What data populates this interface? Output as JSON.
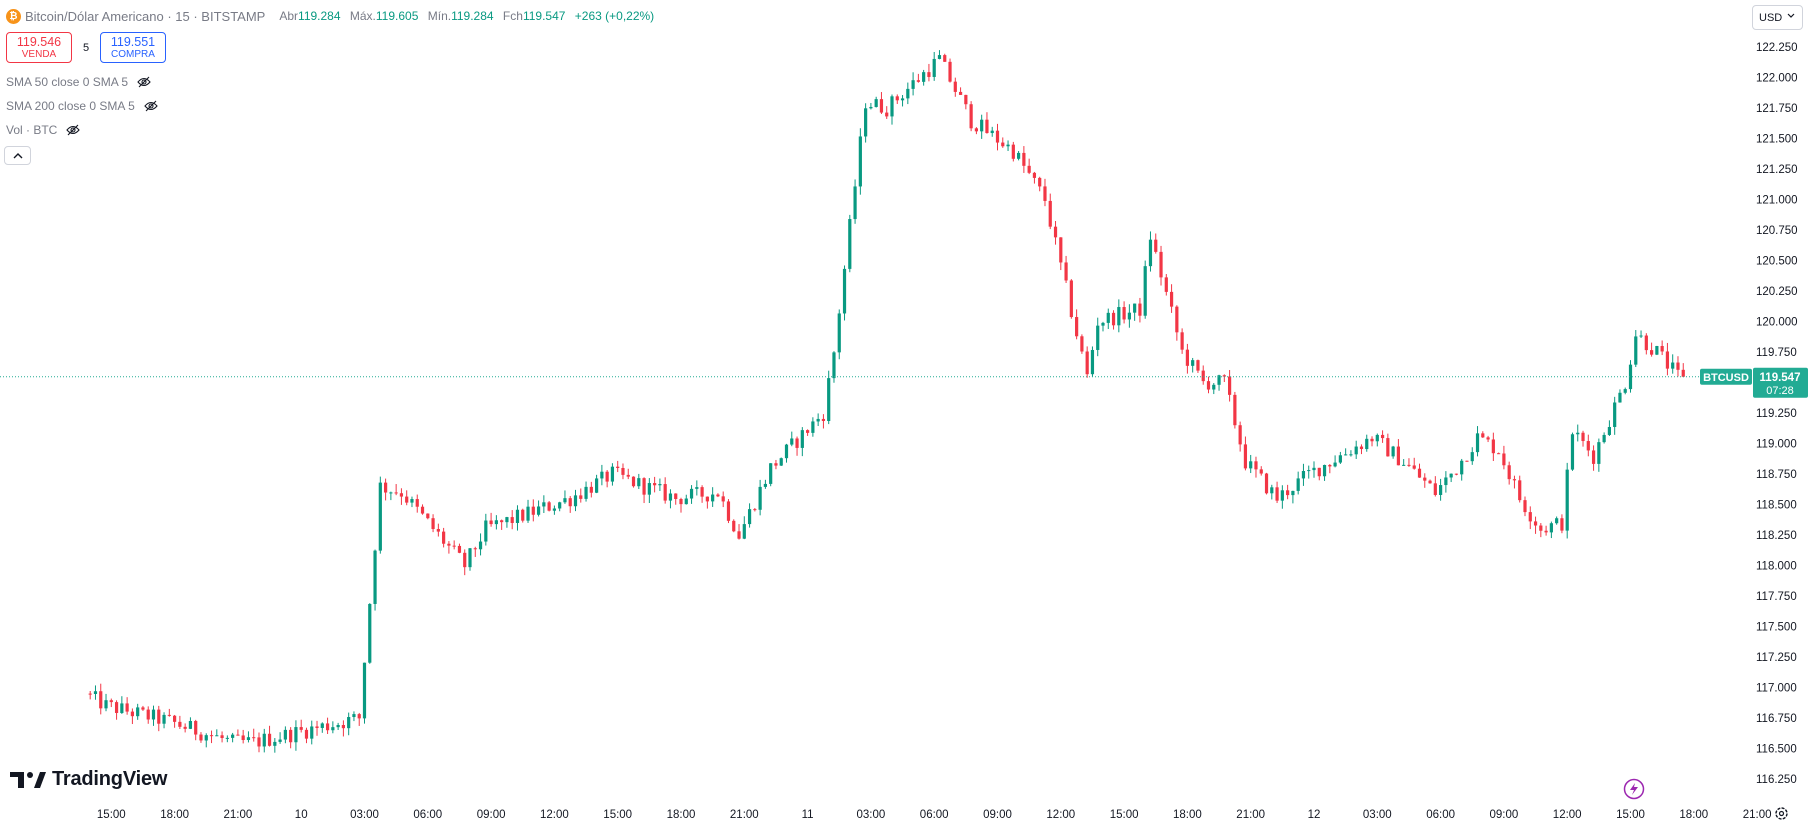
{
  "header": {
    "coin_icon": "bitcoin-icon",
    "symbol_title": "Bitcoin/Dólar Americano · 15 · BITSTAMP",
    "ohlc": {
      "open_label": "Abr",
      "open": "119.284",
      "high_label": "Máx.",
      "high": "119.605",
      "low_label": "Mín.",
      "low": "119.284",
      "close_label": "Fch",
      "close": "119.547",
      "change": "+263 (+0,22%)"
    }
  },
  "trade": {
    "sell_price": "119.546",
    "sell_label": "VENDA",
    "spread": "5",
    "buy_price": "119.551",
    "buy_label": "COMPRA"
  },
  "legends": [
    {
      "label": "SMA 50 close 0 SMA 5"
    },
    {
      "label": "SMA 200 close 0 SMA 5"
    },
    {
      "label": "Vol · BTC"
    }
  ],
  "currency_selector": "USD",
  "branding": "TradingView",
  "colors": {
    "up": "#089981",
    "down": "#f23645",
    "axis_text": "#131722",
    "last_price_bg": "#22ab94"
  },
  "chart_data": {
    "type": "candlestick",
    "price_axis_ticks": [
      "122.250",
      "122.000",
      "121.750",
      "121.500",
      "121.250",
      "121.000",
      "120.750",
      "120.500",
      "120.250",
      "120.000",
      "119.750",
      "119.250",
      "119.000",
      "118.750",
      "118.500",
      "118.250",
      "118.000",
      "117.750",
      "117.500",
      "117.250",
      "117.000",
      "116.750",
      "116.500",
      "116.250"
    ],
    "ylim": [
      116.15,
      122.3
    ],
    "time_axis_ticks": [
      "15:00",
      "18:00",
      "21:00",
      "10",
      "03:00",
      "06:00",
      "09:00",
      "12:00",
      "15:00",
      "18:00",
      "21:00",
      "11",
      "03:00",
      "06:00",
      "09:00",
      "12:00",
      "15:00",
      "18:00",
      "21:00",
      "12",
      "03:00",
      "06:00",
      "09:00",
      "12:00",
      "15:00",
      "18:00",
      "21:00"
    ],
    "last_price": {
      "symbol": "BTCUSD",
      "price": "119.547",
      "countdown": "07:28"
    },
    "keypoints": [
      {
        "t": "09 14:00",
        "p": 116.95
      },
      {
        "t": "09 15:00",
        "p": 116.85
      },
      {
        "t": "09 18:00",
        "p": 116.72
      },
      {
        "t": "09 21:00",
        "p": 116.55
      },
      {
        "t": "09 22:00",
        "p": 116.55
      },
      {
        "t": "10 03:00",
        "p": 116.75
      },
      {
        "t": "10 04:00",
        "p": 118.65
      },
      {
        "t": "10 05:00",
        "p": 118.6
      },
      {
        "t": "10 08:00",
        "p": 118.0
      },
      {
        "t": "10 09:00",
        "p": 118.3
      },
      {
        "t": "10 13:00",
        "p": 118.55
      },
      {
        "t": "10 15:00",
        "p": 118.75
      },
      {
        "t": "10 18:00",
        "p": 118.55
      },
      {
        "t": "10 20:00",
        "p": 118.6
      },
      {
        "t": "10 21:00",
        "p": 118.25
      },
      {
        "t": "10 22:30",
        "p": 118.8
      },
      {
        "t": "11 01:00",
        "p": 119.25
      },
      {
        "t": "11 01:30",
        "p": 119.75
      },
      {
        "t": "11 03:00",
        "p": 121.8
      },
      {
        "t": "11 04:00",
        "p": 121.75
      },
      {
        "t": "11 06:30",
        "p": 122.15
      },
      {
        "t": "11 08:00",
        "p": 121.65
      },
      {
        "t": "11 10:00",
        "p": 121.4
      },
      {
        "t": "11 11:30",
        "p": 121.0
      },
      {
        "t": "11 13:00",
        "p": 119.9
      },
      {
        "t": "11 13:30",
        "p": 119.55
      },
      {
        "t": "11 14:00",
        "p": 120.0
      },
      {
        "t": "11 16:00",
        "p": 120.1
      },
      {
        "t": "11 16:30",
        "p": 120.7
      },
      {
        "t": "11 18:00",
        "p": 119.75
      },
      {
        "t": "11 19:00",
        "p": 119.5
      },
      {
        "t": "11 20:00",
        "p": 119.5
      },
      {
        "t": "11 21:00",
        "p": 118.85
      },
      {
        "t": "11 22:30",
        "p": 118.55
      },
      {
        "t": "12 00:00",
        "p": 118.75
      },
      {
        "t": "12 03:00",
        "p": 119.05
      },
      {
        "t": "12 04:30",
        "p": 118.85
      },
      {
        "t": "12 06:00",
        "p": 118.6
      },
      {
        "t": "12 07:00",
        "p": 118.8
      },
      {
        "t": "12 08:00",
        "p": 119.05
      },
      {
        "t": "12 09:00",
        "p": 118.95
      },
      {
        "t": "12 10:00",
        "p": 118.55
      },
      {
        "t": "12 11:00",
        "p": 118.3
      },
      {
        "t": "12 12:00",
        "p": 118.35
      },
      {
        "t": "12 12:30",
        "p": 119.1
      },
      {
        "t": "12 13:30",
        "p": 118.9
      },
      {
        "t": "12 15:00",
        "p": 119.5
      },
      {
        "t": "12 15:30",
        "p": 119.9
      },
      {
        "t": "12 16:30",
        "p": 119.75
      },
      {
        "t": "12 17:30",
        "p": 119.547
      }
    ]
  }
}
